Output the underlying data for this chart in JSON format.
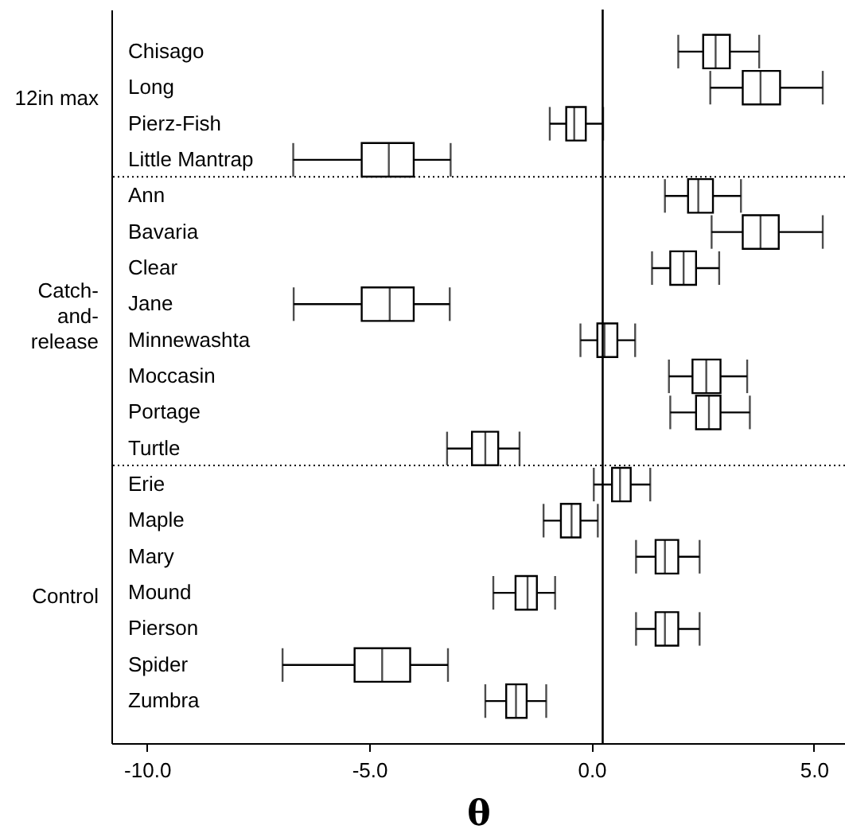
{
  "chart_data": {
    "type": "box",
    "orientation": "horizontal",
    "xlabel": "θ",
    "color": "#000000",
    "categories": [
      "Chisago",
      "Long",
      "Pierz-Fish",
      "Little Mantrap",
      "Ann",
      "Bavaria",
      "Clear",
      "Jane",
      "Minnewashta",
      "Moccasin",
      "Portage",
      "Turtle",
      "Erie",
      "Maple",
      "Mary",
      "Mound",
      "Pierson",
      "Spider",
      "Zumbra"
    ],
    "boxes": [
      {
        "low": 1.95,
        "q1": 2.51,
        "median": 2.79,
        "q3": 3.11,
        "high": 3.77
      },
      {
        "low": 2.67,
        "q1": 3.4,
        "median": 3.8,
        "q3": 4.24,
        "high": 5.2
      },
      {
        "low": -0.94,
        "q1": -0.57,
        "median": -0.39,
        "q3": -0.13,
        "high": 0.26
      },
      {
        "low": -6.71,
        "q1": -5.17,
        "median": -4.56,
        "q3": -4.0,
        "high": -3.17
      },
      {
        "low": 1.65,
        "q1": 2.17,
        "median": 2.4,
        "q3": 2.73,
        "high": 3.36
      },
      {
        "low": 2.7,
        "q1": 3.4,
        "median": 3.8,
        "q3": 4.21,
        "high": 5.2
      },
      {
        "low": 1.36,
        "q1": 1.77,
        "median": 2.07,
        "q3": 2.35,
        "high": 2.87
      },
      {
        "low": -6.7,
        "q1": -5.17,
        "median": -4.54,
        "q3": -4.0,
        "high": -3.19
      },
      {
        "low": -0.25,
        "q1": 0.13,
        "median": 0.29,
        "q3": 0.58,
        "high": 0.98
      },
      {
        "low": 1.74,
        "q1": 2.27,
        "median": 2.58,
        "q3": 2.9,
        "high": 3.5
      },
      {
        "low": 1.77,
        "q1": 2.35,
        "median": 2.64,
        "q3": 2.9,
        "high": 3.56
      },
      {
        "low": -3.25,
        "q1": -2.69,
        "median": -2.39,
        "q3": -2.1,
        "high": -1.62
      },
      {
        "low": 0.05,
        "q1": 0.46,
        "median": 0.64,
        "q3": 0.88,
        "high": 1.32
      },
      {
        "low": -1.08,
        "q1": -0.69,
        "median": -0.45,
        "q3": -0.25,
        "high": 0.14
      },
      {
        "low": 1.0,
        "q1": 1.44,
        "median": 1.65,
        "q3": 1.95,
        "high": 2.43
      },
      {
        "low": -2.21,
        "q1": -1.71,
        "median": -1.44,
        "q3": -1.23,
        "high": -0.82
      },
      {
        "low": 1.0,
        "q1": 1.44,
        "median": 1.65,
        "q3": 1.95,
        "high": 2.43
      },
      {
        "low": -6.95,
        "q1": -5.33,
        "median": -4.71,
        "q3": -4.08,
        "high": -3.23
      },
      {
        "low": -2.39,
        "q1": -1.92,
        "median": -1.7,
        "q3": -1.46,
        "high": -1.02
      }
    ],
    "xlim": [
      -10.8,
      5.7
    ],
    "xticks": [
      {
        "value": -10,
        "label": "-10.0"
      },
      {
        "value": -5,
        "label": "-5.0"
      },
      {
        "value": 0,
        "label": "0.0"
      },
      {
        "value": 5,
        "label": "5.0"
      }
    ],
    "ref_lines": [
      {
        "axis": "x",
        "value": 0.25,
        "color": "#000000",
        "line_style": "solid"
      }
    ],
    "annotations": [
      "12in max",
      "Catch-and-release",
      "Control"
    ]
  }
}
